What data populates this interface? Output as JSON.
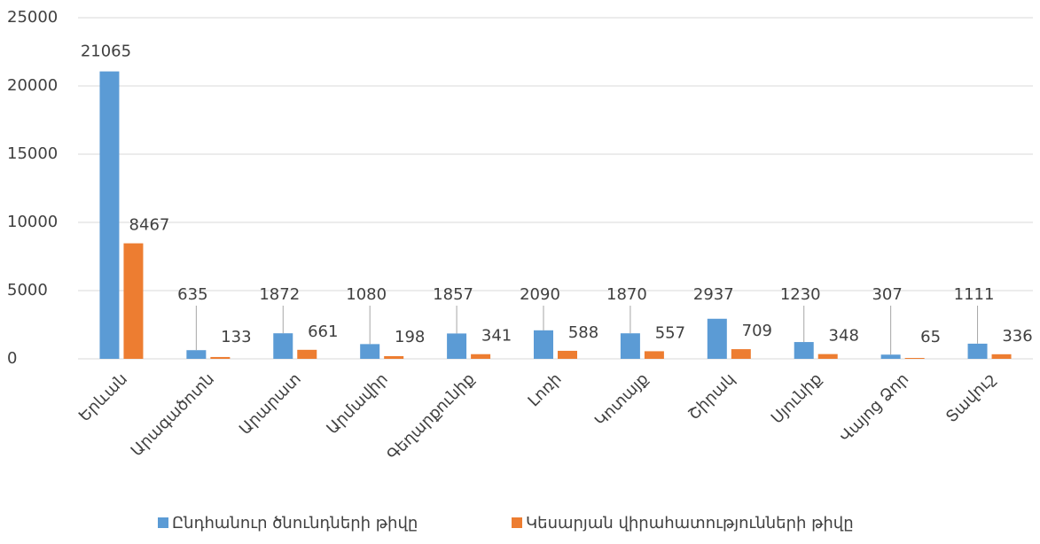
{
  "chart_data": {
    "type": "bar",
    "categories": [
      "Երևան",
      "Արագածոտն",
      "Արարատ",
      "Արմավիր",
      "Գեղարքունիք",
      "Լոռի",
      "Կոտայք",
      "Շիրակ",
      "Սյունիք",
      "Վայոց Ձոր",
      "Տավուշ"
    ],
    "series": [
      {
        "name": "Ընդհանուր ծնունդների թիվը",
        "color": "#5b9bd5",
        "values": [
          21065,
          635,
          1872,
          1080,
          1857,
          2090,
          1870,
          2937,
          1230,
          307,
          1111
        ]
      },
      {
        "name": "Կեսարյան վիրահատությունների թիվը",
        "color": "#ed7d31",
        "values": [
          8467,
          133,
          661,
          198,
          341,
          588,
          557,
          709,
          348,
          65,
          336
        ]
      }
    ],
    "ylim": [
      0,
      25000
    ],
    "yticks": [
      0,
      5000,
      10000,
      15000,
      20000,
      25000
    ],
    "grid": true,
    "legend": "bottom"
  }
}
